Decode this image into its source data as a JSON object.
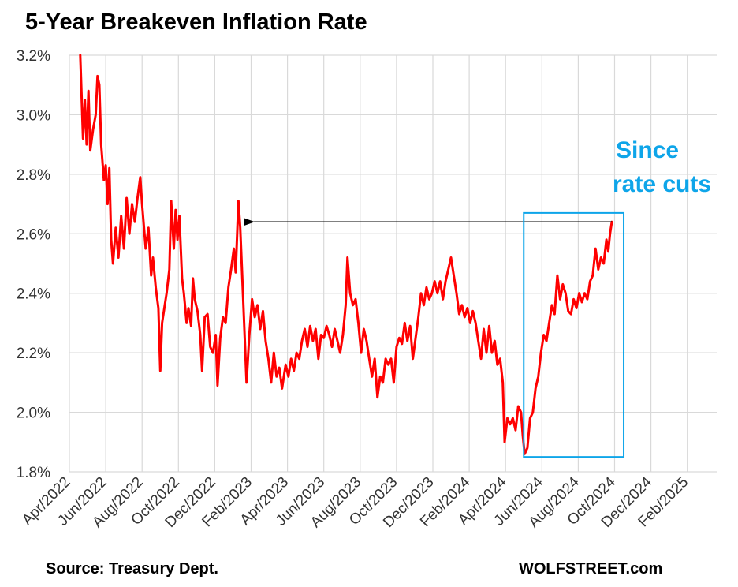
{
  "chart_data": {
    "type": "line",
    "title": "5-Year Breakeven Inflation Rate",
    "xlabel": "",
    "ylabel": "",
    "ylim": [
      1.8,
      3.2
    ],
    "y_ticks": [
      "3.2%",
      "3.0%",
      "2.8%",
      "2.6%",
      "2.4%",
      "2.2%",
      "2.0%",
      "1.8%"
    ],
    "x_ticks": [
      "Apr/2022",
      "Jun/2022",
      "Aug/2022",
      "Oct/2022",
      "Dec/2022",
      "Feb/2023",
      "Apr/2023",
      "Jun/2023",
      "Aug/2023",
      "Oct/2023",
      "Dec/2023",
      "Feb/2024",
      "Apr/2024",
      "Jun/2024",
      "Aug/2024",
      "Oct/2024",
      "Dec/2024",
      "Feb/2025"
    ],
    "x_range_months": [
      0,
      35.2
    ],
    "grid": true,
    "series": [
      {
        "name": "5-Year Breakeven Inflation Rate",
        "color": "#ff0000",
        "points": [
          [
            0.6,
            3.2
          ],
          [
            0.75,
            2.92
          ],
          [
            0.85,
            3.05
          ],
          [
            0.95,
            2.9
          ],
          [
            1.05,
            3.08
          ],
          [
            1.15,
            2.88
          ],
          [
            1.3,
            2.95
          ],
          [
            1.45,
            3.0
          ],
          [
            1.55,
            3.13
          ],
          [
            1.65,
            3.1
          ],
          [
            1.75,
            2.9
          ],
          [
            1.9,
            2.78
          ],
          [
            2.0,
            2.83
          ],
          [
            2.1,
            2.7
          ],
          [
            2.2,
            2.82
          ],
          [
            2.3,
            2.58
          ],
          [
            2.4,
            2.5
          ],
          [
            2.55,
            2.62
          ],
          [
            2.7,
            2.52
          ],
          [
            2.85,
            2.66
          ],
          [
            3.0,
            2.55
          ],
          [
            3.15,
            2.72
          ],
          [
            3.3,
            2.6
          ],
          [
            3.45,
            2.7
          ],
          [
            3.6,
            2.64
          ],
          [
            3.75,
            2.72
          ],
          [
            3.9,
            2.79
          ],
          [
            4.0,
            2.7
          ],
          [
            4.2,
            2.55
          ],
          [
            4.35,
            2.62
          ],
          [
            4.5,
            2.46
          ],
          [
            4.6,
            2.52
          ],
          [
            4.75,
            2.42
          ],
          [
            4.9,
            2.35
          ],
          [
            5.0,
            2.14
          ],
          [
            5.1,
            2.3
          ],
          [
            5.25,
            2.36
          ],
          [
            5.35,
            2.4
          ],
          [
            5.5,
            2.48
          ],
          [
            5.6,
            2.71
          ],
          [
            5.75,
            2.55
          ],
          [
            5.85,
            2.68
          ],
          [
            5.95,
            2.58
          ],
          [
            6.05,
            2.66
          ],
          [
            6.2,
            2.45
          ],
          [
            6.3,
            2.4
          ],
          [
            6.45,
            2.3
          ],
          [
            6.55,
            2.35
          ],
          [
            6.7,
            2.29
          ],
          [
            6.8,
            2.45
          ],
          [
            6.9,
            2.38
          ],
          [
            7.05,
            2.34
          ],
          [
            7.2,
            2.26
          ],
          [
            7.3,
            2.14
          ],
          [
            7.45,
            2.32
          ],
          [
            7.6,
            2.33
          ],
          [
            7.75,
            2.22
          ],
          [
            7.9,
            2.2
          ],
          [
            8.05,
            2.26
          ],
          [
            8.15,
            2.09
          ],
          [
            8.3,
            2.25
          ],
          [
            8.45,
            2.32
          ],
          [
            8.6,
            2.3
          ],
          [
            8.75,
            2.42
          ],
          [
            8.9,
            2.48
          ],
          [
            9.05,
            2.55
          ],
          [
            9.15,
            2.47
          ],
          [
            9.3,
            2.71
          ],
          [
            9.4,
            2.62
          ],
          [
            9.55,
            2.4
          ],
          [
            9.65,
            2.25
          ],
          [
            9.75,
            2.1
          ],
          [
            9.9,
            2.26
          ],
          [
            10.05,
            2.38
          ],
          [
            10.2,
            2.32
          ],
          [
            10.35,
            2.36
          ],
          [
            10.5,
            2.28
          ],
          [
            10.65,
            2.34
          ],
          [
            10.8,
            2.24
          ],
          [
            10.95,
            2.18
          ],
          [
            11.1,
            2.1
          ],
          [
            11.25,
            2.2
          ],
          [
            11.4,
            2.12
          ],
          [
            11.55,
            2.15
          ],
          [
            11.7,
            2.08
          ],
          [
            11.9,
            2.16
          ],
          [
            12.05,
            2.12
          ],
          [
            12.2,
            2.18
          ],
          [
            12.35,
            2.14
          ],
          [
            12.5,
            2.2
          ],
          [
            12.65,
            2.18
          ],
          [
            12.8,
            2.24
          ],
          [
            12.95,
            2.28
          ],
          [
            13.1,
            2.22
          ],
          [
            13.25,
            2.29
          ],
          [
            13.4,
            2.24
          ],
          [
            13.55,
            2.28
          ],
          [
            13.7,
            2.18
          ],
          [
            13.85,
            2.26
          ],
          [
            14.0,
            2.25
          ],
          [
            14.15,
            2.29
          ],
          [
            14.3,
            2.26
          ],
          [
            14.45,
            2.22
          ],
          [
            14.6,
            2.28
          ],
          [
            14.75,
            2.24
          ],
          [
            14.9,
            2.2
          ],
          [
            15.05,
            2.26
          ],
          [
            15.2,
            2.36
          ],
          [
            15.3,
            2.52
          ],
          [
            15.45,
            2.4
          ],
          [
            15.6,
            2.36
          ],
          [
            15.75,
            2.38
          ],
          [
            15.9,
            2.3
          ],
          [
            16.05,
            2.2
          ],
          [
            16.2,
            2.28
          ],
          [
            16.35,
            2.24
          ],
          [
            16.5,
            2.18
          ],
          [
            16.65,
            2.12
          ],
          [
            16.8,
            2.18
          ],
          [
            16.95,
            2.05
          ],
          [
            17.1,
            2.12
          ],
          [
            17.25,
            2.1
          ],
          [
            17.4,
            2.18
          ],
          [
            17.55,
            2.16
          ],
          [
            17.7,
            2.18
          ],
          [
            17.85,
            2.1
          ],
          [
            18.0,
            2.22
          ],
          [
            18.15,
            2.25
          ],
          [
            18.3,
            2.23
          ],
          [
            18.45,
            2.3
          ],
          [
            18.6,
            2.24
          ],
          [
            18.75,
            2.29
          ],
          [
            18.9,
            2.18
          ],
          [
            19.05,
            2.25
          ],
          [
            19.2,
            2.32
          ],
          [
            19.35,
            2.4
          ],
          [
            19.5,
            2.36
          ],
          [
            19.65,
            2.42
          ],
          [
            19.8,
            2.38
          ],
          [
            19.95,
            2.4
          ],
          [
            20.1,
            2.44
          ],
          [
            20.25,
            2.4
          ],
          [
            20.4,
            2.44
          ],
          [
            20.55,
            2.38
          ],
          [
            20.7,
            2.44
          ],
          [
            20.85,
            2.48
          ],
          [
            21.0,
            2.52
          ],
          [
            21.15,
            2.46
          ],
          [
            21.3,
            2.4
          ],
          [
            21.45,
            2.33
          ],
          [
            21.6,
            2.36
          ],
          [
            21.75,
            2.32
          ],
          [
            21.9,
            2.35
          ],
          [
            22.05,
            2.3
          ],
          [
            22.2,
            2.34
          ],
          [
            22.35,
            2.3
          ],
          [
            22.5,
            2.24
          ],
          [
            22.65,
            2.18
          ],
          [
            22.8,
            2.28
          ],
          [
            22.95,
            2.2
          ],
          [
            23.1,
            2.29
          ],
          [
            23.25,
            2.2
          ],
          [
            23.4,
            2.24
          ],
          [
            23.55,
            2.16
          ],
          [
            23.7,
            2.18
          ],
          [
            23.85,
            2.1
          ],
          [
            23.95,
            1.9
          ],
          [
            24.1,
            1.98
          ],
          [
            24.25,
            1.96
          ],
          [
            24.4,
            1.98
          ],
          [
            24.55,
            1.94
          ],
          [
            24.7,
            2.02
          ],
          [
            24.85,
            2.0
          ],
          [
            24.95,
            1.92
          ],
          [
            25.05,
            1.86
          ],
          [
            25.2,
            1.88
          ],
          [
            25.35,
            1.98
          ],
          [
            25.5,
            2.0
          ],
          [
            25.65,
            2.08
          ],
          [
            25.8,
            2.12
          ],
          [
            25.95,
            2.2
          ],
          [
            26.1,
            2.26
          ],
          [
            26.25,
            2.24
          ],
          [
            26.4,
            2.3
          ],
          [
            26.55,
            2.36
          ],
          [
            26.7,
            2.33
          ],
          [
            26.85,
            2.46
          ],
          [
            27.0,
            2.38
          ],
          [
            27.15,
            2.43
          ],
          [
            27.3,
            2.4
          ],
          [
            27.45,
            2.34
          ],
          [
            27.6,
            2.33
          ],
          [
            27.75,
            2.38
          ],
          [
            27.9,
            2.35
          ],
          [
            28.05,
            2.4
          ],
          [
            28.2,
            2.37
          ],
          [
            28.35,
            2.4
          ],
          [
            28.5,
            2.38
          ],
          [
            28.65,
            2.44
          ],
          [
            28.8,
            2.46
          ],
          [
            28.95,
            2.55
          ],
          [
            29.1,
            2.48
          ],
          [
            29.25,
            2.52
          ],
          [
            29.4,
            2.5
          ],
          [
            29.55,
            2.58
          ],
          [
            29.65,
            2.54
          ],
          [
            29.75,
            2.6
          ],
          [
            29.85,
            2.64
          ]
        ]
      }
    ],
    "annotations": {
      "rate_cut_label": [
        "Since",
        "rate cuts"
      ],
      "rate_cut_color": "#0ea5e9",
      "arrow_from": [
        29.85,
        2.64
      ],
      "arrow_to": [
        9.55,
        2.64
      ],
      "box_x_range": [
        25.0,
        30.5
      ],
      "box_y_range": [
        1.85,
        2.67
      ]
    }
  },
  "footer": {
    "source": "Source: Treasury Dept.",
    "brand": "WOLFSTREET.com"
  }
}
